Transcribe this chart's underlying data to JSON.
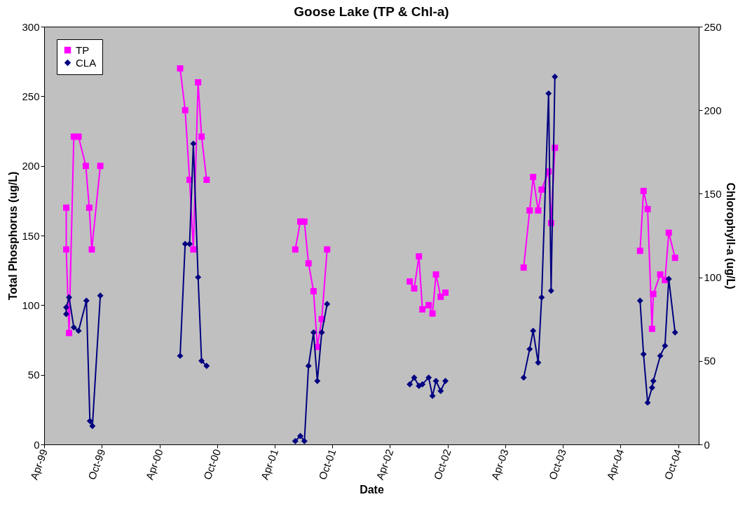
{
  "chart_data": {
    "type": "line",
    "title": "Goose Lake (TP & Chl-a)",
    "xlabel": "Date",
    "ylabel": "Total Phosphorus (ug/L)",
    "y2label": "Chlorophyll-a (ug/L)",
    "xlim": [
      "1999-04-01",
      "2004-12-05"
    ],
    "xticks": [
      {
        "value": "1999-04-01",
        "label": "Apr-99"
      },
      {
        "value": "1999-10-01",
        "label": "Oct-99"
      },
      {
        "value": "2000-04-01",
        "label": "Apr-00"
      },
      {
        "value": "2000-10-01",
        "label": "Oct-00"
      },
      {
        "value": "2001-04-01",
        "label": "Apr-01"
      },
      {
        "value": "2001-10-01",
        "label": "Oct-01"
      },
      {
        "value": "2002-04-01",
        "label": "Apr-02"
      },
      {
        "value": "2002-10-01",
        "label": "Oct-02"
      },
      {
        "value": "2003-04-01",
        "label": "Apr-03"
      },
      {
        "value": "2003-10-01",
        "label": "Oct-03"
      },
      {
        "value": "2004-04-01",
        "label": "Apr-04"
      },
      {
        "value": "2004-10-01",
        "label": "Oct-04"
      }
    ],
    "ylim": [
      0,
      300
    ],
    "yticks": [
      0,
      50,
      100,
      150,
      200,
      250,
      300
    ],
    "y2lim": [
      0,
      250
    ],
    "y2ticks": [
      0,
      50,
      100,
      150,
      200,
      250
    ],
    "legend": "top left",
    "line_style": "solid",
    "series": [
      {
        "name": "TP",
        "color": "#ff00ff",
        "marker": "square",
        "x": [
          "1999-06-10",
          "1999-06-10",
          "1999-06-19",
          "1999-07-04",
          "1999-07-19",
          "1999-08-11",
          "1999-08-22",
          "1999-08-30",
          "1999-09-26",
          "2000-01-15",
          "2000-06-05",
          "2000-06-21",
          "2000-07-05",
          "2000-07-17",
          "2000-08-01",
          "2000-08-12",
          "2000-08-28",
          "2001-01-15",
          "2001-06-05",
          "2001-06-21",
          "2001-07-04",
          "2001-07-17",
          "2001-08-02",
          "2001-08-14",
          "2001-08-28",
          "2001-09-14",
          "2002-01-15",
          "2002-06-03",
          "2002-06-17",
          "2002-07-02",
          "2002-07-13",
          "2002-08-02",
          "2002-08-14",
          "2002-08-25",
          "2002-09-09",
          "2002-09-24",
          "2003-01-15",
          "2003-05-30",
          "2003-06-18",
          "2003-06-29",
          "2003-07-15",
          "2003-07-26",
          "2003-08-17",
          "2003-08-25",
          "2003-09-06",
          "2004-01-15",
          "2004-06-02",
          "2004-06-13",
          "2004-06-26",
          "2004-07-10",
          "2004-07-14",
          "2004-08-05",
          "2004-08-20",
          "2004-09-01",
          "2004-09-21"
        ],
        "values": [
          170,
          140,
          80,
          221,
          221,
          200,
          170,
          140,
          200,
          null,
          270,
          240,
          190,
          140,
          260,
          221,
          190,
          null,
          140,
          160,
          160,
          130,
          110,
          70,
          90,
          140,
          null,
          117,
          112,
          135,
          97,
          100,
          94,
          122,
          106,
          109,
          null,
          127,
          168,
          192,
          168,
          183,
          196,
          159,
          213,
          null,
          139,
          182,
          169,
          83,
          108,
          122,
          118,
          152,
          134
        ]
      },
      {
        "name": "CLA",
        "color": "#000080",
        "marker": "diamond",
        "axis": "y2",
        "x": [
          "1999-06-10",
          "1999-06-10",
          "1999-06-19",
          "1999-07-04",
          "1999-07-19",
          "1999-08-13",
          "1999-08-24",
          "1999-09-01",
          "1999-09-26",
          "2000-01-15",
          "2000-06-05",
          "2000-06-21",
          "2000-07-05",
          "2000-07-17",
          "2000-08-01",
          "2000-08-12",
          "2000-08-28",
          "2001-01-15",
          "2001-06-05",
          "2001-06-21",
          "2001-07-04",
          "2001-07-17",
          "2001-08-02",
          "2001-08-14",
          "2001-08-28",
          "2001-09-14",
          "2002-01-15",
          "2002-06-03",
          "2002-06-17",
          "2002-07-02",
          "2002-07-13",
          "2002-08-02",
          "2002-08-14",
          "2002-08-25",
          "2002-09-09",
          "2002-09-24",
          "2003-01-15",
          "2003-05-30",
          "2003-06-18",
          "2003-06-29",
          "2003-07-15",
          "2003-07-26",
          "2003-08-17",
          "2003-08-25",
          "2003-09-06",
          "2004-01-15",
          "2004-06-02",
          "2004-06-13",
          "2004-06-26",
          "2004-07-10",
          "2004-07-14",
          "2004-08-05",
          "2004-08-20",
          "2004-09-01",
          "2004-09-21"
        ],
        "values": [
          78,
          82,
          88,
          70,
          68,
          86,
          14,
          11,
          89,
          null,
          53,
          120,
          120,
          180,
          100,
          50,
          47,
          null,
          2,
          5,
          2,
          47,
          67,
          38,
          67,
          84,
          null,
          36,
          40,
          35,
          36,
          40,
          29,
          38,
          32,
          38,
          null,
          40,
          57,
          68,
          49,
          88,
          210,
          92,
          220,
          null,
          86,
          54,
          25,
          34,
          38,
          53,
          59,
          99,
          67
        ]
      }
    ]
  }
}
